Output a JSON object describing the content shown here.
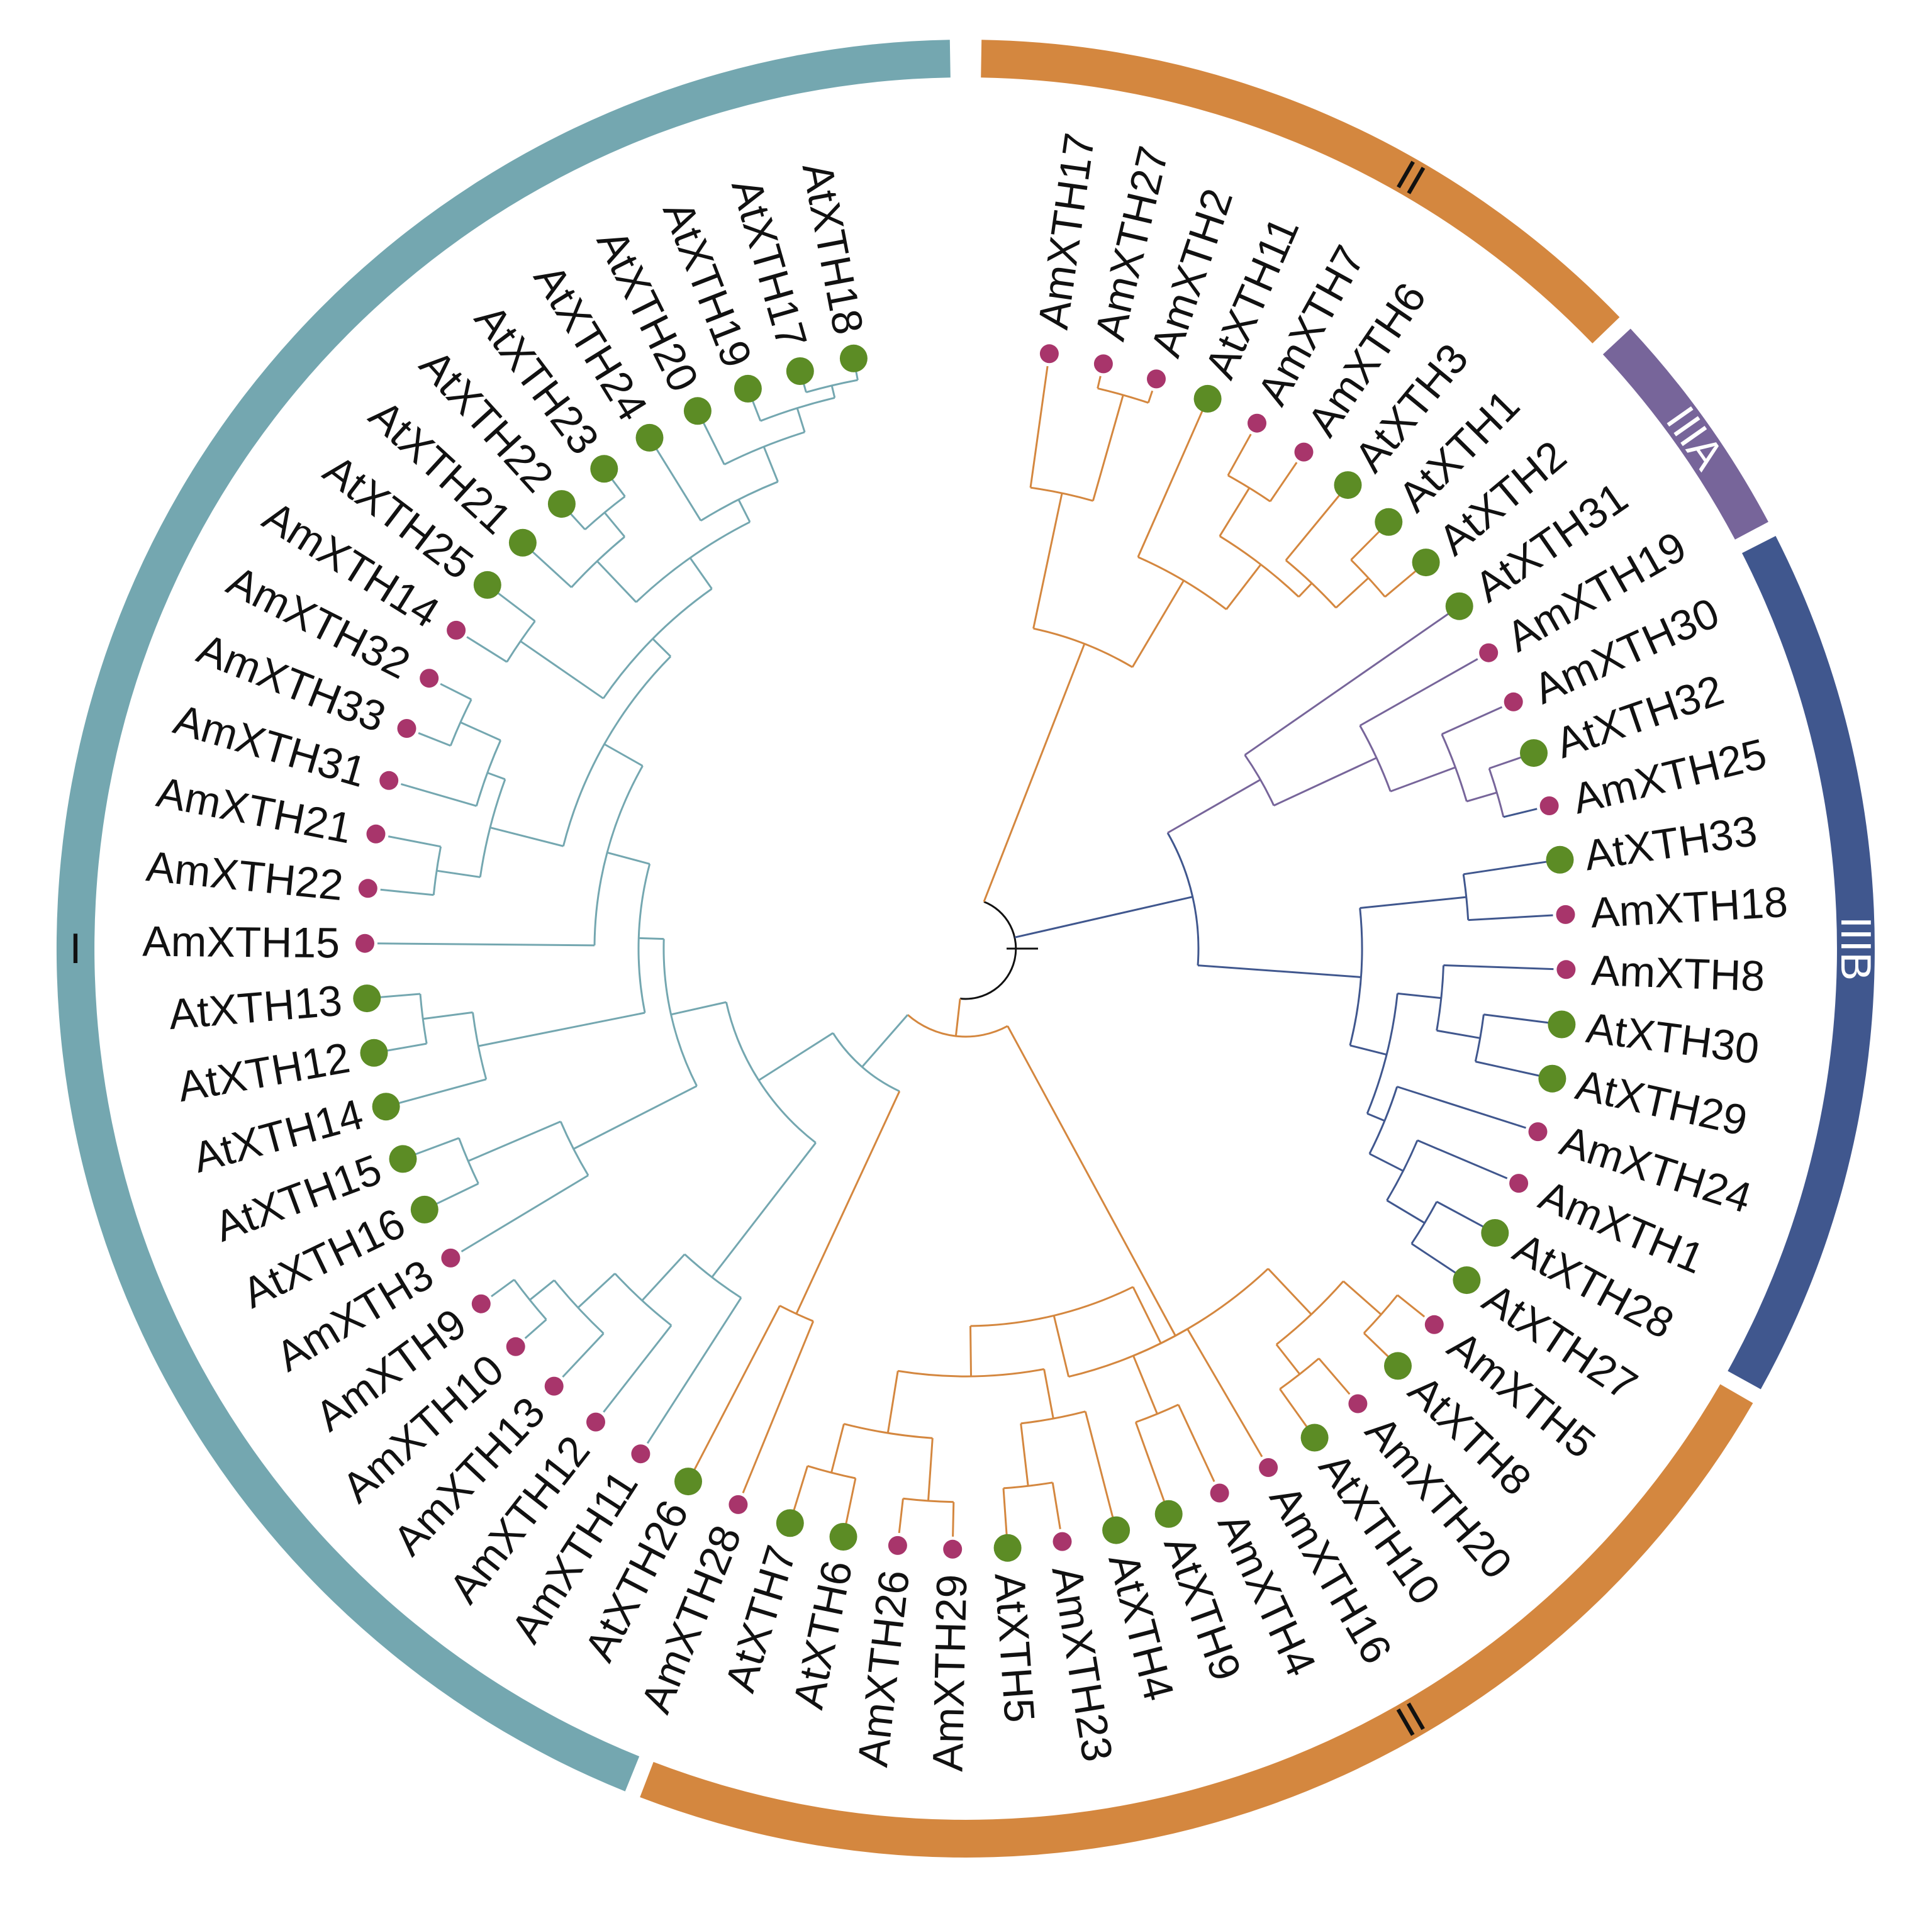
{
  "title": "",
  "colors": {
    "I": "#74a7b0",
    "II": "#d4873f",
    "IIIA": "#77659a",
    "IIIB": "#40578e",
    "root": "#111111",
    "amaranth_marker": "#a8356b",
    "arabidopsis_marker": "#5c8c25"
  },
  "groups": [
    {
      "label": "II",
      "color": "II",
      "text_color": "#111111"
    },
    {
      "label": "IIIA",
      "color": "IIIA",
      "text_color": "#ffffff"
    },
    {
      "label": "IIIB",
      "color": "IIIB",
      "text_color": "#ffffff"
    },
    {
      "label": "II",
      "color": "II",
      "text_color": "#111111"
    },
    {
      "label": "I",
      "color": "I",
      "text_color": "#111111"
    }
  ],
  "tips": [
    {
      "label": "AmXTH17",
      "species": "Am",
      "group": "II"
    },
    {
      "label": "AmXTH27",
      "species": "Am",
      "group": "II"
    },
    {
      "label": "AmXTH2",
      "species": "Am",
      "group": "II"
    },
    {
      "label": "AtXTH11",
      "species": "At",
      "group": "II"
    },
    {
      "label": "AmXTH7",
      "species": "Am",
      "group": "II"
    },
    {
      "label": "AmXTH6",
      "species": "Am",
      "group": "II"
    },
    {
      "label": "AtXTH3",
      "species": "At",
      "group": "II"
    },
    {
      "label": "AtXTH1",
      "species": "At",
      "group": "II"
    },
    {
      "label": "AtXTH2",
      "species": "At",
      "group": "II"
    },
    {
      "label": "AtXTH31",
      "species": "At",
      "group": "IIIA"
    },
    {
      "label": "AmXTH19",
      "species": "Am",
      "group": "IIIA"
    },
    {
      "label": "AmXTH30",
      "species": "Am",
      "group": "IIIA"
    },
    {
      "label": "AtXTH32",
      "species": "At",
      "group": "IIIA"
    },
    {
      "label": "AmXTH25",
      "species": "Am",
      "group": "IIIB"
    },
    {
      "label": "AtXTH33",
      "species": "At",
      "group": "IIIB"
    },
    {
      "label": "AmXTH18",
      "species": "Am",
      "group": "IIIB"
    },
    {
      "label": "AmXTH8",
      "species": "Am",
      "group": "IIIB"
    },
    {
      "label": "AtXTH30",
      "species": "At",
      "group": "IIIB"
    },
    {
      "label": "AtXTH29",
      "species": "At",
      "group": "IIIB"
    },
    {
      "label": "AmXTH24",
      "species": "Am",
      "group": "IIIB"
    },
    {
      "label": "AmXTH1",
      "species": "Am",
      "group": "IIIB"
    },
    {
      "label": "AtXTH28",
      "species": "At",
      "group": "IIIB"
    },
    {
      "label": "AtXTH27",
      "species": "At",
      "group": "IIIB"
    },
    {
      "label": "AmXTH5",
      "species": "Am",
      "group": "II"
    },
    {
      "label": "AtXTH8",
      "species": "At",
      "group": "II"
    },
    {
      "label": "AmXTH20",
      "species": "Am",
      "group": "II"
    },
    {
      "label": "AtXTH10",
      "species": "At",
      "group": "II"
    },
    {
      "label": "AmXTH16",
      "species": "Am",
      "group": "II"
    },
    {
      "label": "AmXTH4",
      "species": "Am",
      "group": "II"
    },
    {
      "label": "AtXTH9",
      "species": "At",
      "group": "II"
    },
    {
      "label": "AtXTH4",
      "species": "At",
      "group": "II"
    },
    {
      "label": "AmXTH23",
      "species": "Am",
      "group": "II"
    },
    {
      "label": "AtXTH5",
      "species": "At",
      "group": "II"
    },
    {
      "label": "AmXTH29",
      "species": "Am",
      "group": "II"
    },
    {
      "label": "AmXTH26",
      "species": "Am",
      "group": "II"
    },
    {
      "label": "AtXTH6",
      "species": "At",
      "group": "II"
    },
    {
      "label": "AtXTH7",
      "species": "At",
      "group": "II"
    },
    {
      "label": "AmXTH28",
      "species": "Am",
      "group": "II"
    },
    {
      "label": "AtXTH26",
      "species": "At",
      "group": "II"
    },
    {
      "label": "AmXTH11",
      "species": "Am",
      "group": "I"
    },
    {
      "label": "AmXTH12",
      "species": "Am",
      "group": "I"
    },
    {
      "label": "AmXTH13",
      "species": "Am",
      "group": "I"
    },
    {
      "label": "AmXTH10",
      "species": "Am",
      "group": "I"
    },
    {
      "label": "AmXTH9",
      "species": "Am",
      "group": "I"
    },
    {
      "label": "AmXTH3",
      "species": "Am",
      "group": "I"
    },
    {
      "label": "AtXTH16",
      "species": "At",
      "group": "I"
    },
    {
      "label": "AtXTH15",
      "species": "At",
      "group": "I"
    },
    {
      "label": "AtXTH14",
      "species": "At",
      "group": "I"
    },
    {
      "label": "AtXTH12",
      "species": "At",
      "group": "I"
    },
    {
      "label": "AtXTH13",
      "species": "At",
      "group": "I"
    },
    {
      "label": "AmXTH15",
      "species": "Am",
      "group": "I"
    },
    {
      "label": "AmXTH22",
      "species": "Am",
      "group": "I"
    },
    {
      "label": "AmXTH21",
      "species": "Am",
      "group": "I"
    },
    {
      "label": "AmXTH31",
      "species": "Am",
      "group": "I"
    },
    {
      "label": "AmXTH33",
      "species": "Am",
      "group": "I"
    },
    {
      "label": "AmXTH32",
      "species": "Am",
      "group": "I"
    },
    {
      "label": "AmXTH14",
      "species": "Am",
      "group": "I"
    },
    {
      "label": "AtXTH25",
      "species": "At",
      "group": "I"
    },
    {
      "label": "AtXTH21",
      "species": "At",
      "group": "I"
    },
    {
      "label": "AtXTH22",
      "species": "At",
      "group": "I"
    },
    {
      "label": "AtXTH23",
      "species": "At",
      "group": "I"
    },
    {
      "label": "AtXTH24",
      "species": "At",
      "group": "I"
    },
    {
      "label": "AtXTH20",
      "species": "At",
      "group": "I"
    },
    {
      "label": "AtXTH19",
      "species": "At",
      "group": "I"
    },
    {
      "label": "AtXTH17",
      "species": "At",
      "group": "I"
    },
    {
      "label": "AtXTH18",
      "species": "At",
      "group": "I"
    }
  ]
}
